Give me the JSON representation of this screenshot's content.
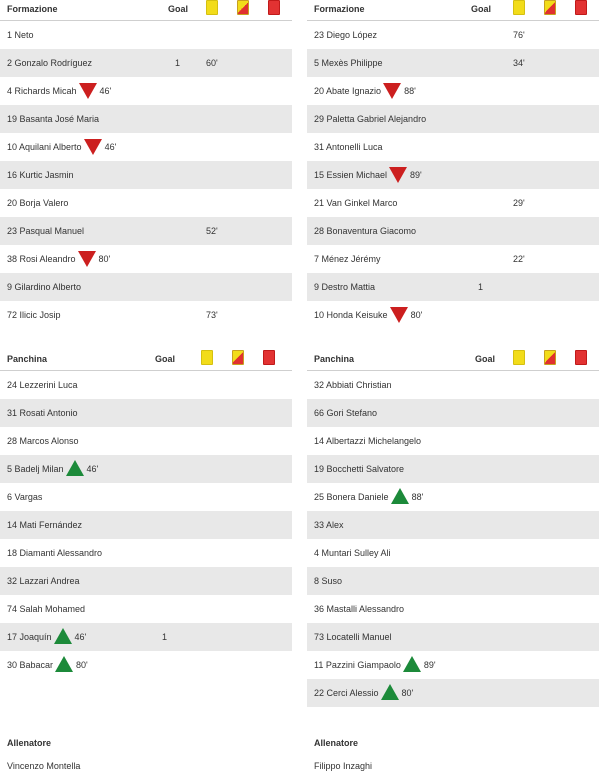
{
  "home": {
    "lineup": {
      "title": "Formazione",
      "goal_label": "Goal",
      "players": [
        {
          "label": "1 Neto",
          "sub": null,
          "time": "",
          "goal": "",
          "yellow": ""
        },
        {
          "label": "2 Gonzalo Rodríguez",
          "sub": null,
          "time": "",
          "goal": "1",
          "yellow": "60'"
        },
        {
          "label": "4 Richards Micah",
          "sub": "out",
          "time": "46'",
          "goal": "",
          "yellow": ""
        },
        {
          "label": "19 Basanta José Maria",
          "sub": null,
          "time": "",
          "goal": "",
          "yellow": ""
        },
        {
          "label": "10 Aquilani Alberto",
          "sub": "out",
          "time": "46'",
          "goal": "",
          "yellow": ""
        },
        {
          "label": "16 Kurtic Jasmin",
          "sub": null,
          "time": "",
          "goal": "",
          "yellow": ""
        },
        {
          "label": "20 Borja Valero",
          "sub": null,
          "time": "",
          "goal": "",
          "yellow": ""
        },
        {
          "label": "23 Pasqual Manuel",
          "sub": null,
          "time": "",
          "goal": "",
          "yellow": "52'"
        },
        {
          "label": "38 Rosi Aleandro",
          "sub": "out",
          "time": "80'",
          "goal": "",
          "yellow": ""
        },
        {
          "label": "9 Gilardino Alberto",
          "sub": null,
          "time": "",
          "goal": "",
          "yellow": ""
        },
        {
          "label": "72 Ilicic Josip",
          "sub": null,
          "time": "",
          "goal": "",
          "yellow": "73'"
        }
      ]
    },
    "bench": {
      "title": "Panchina",
      "goal_label": "Goal",
      "players": [
        {
          "label": "24 Lezzerini Luca",
          "sub": null,
          "time": "",
          "goal": "",
          "yellow": ""
        },
        {
          "label": "31 Rosati Antonio",
          "sub": null,
          "time": "",
          "goal": "",
          "yellow": ""
        },
        {
          "label": "28 Marcos Alonso",
          "sub": null,
          "time": "",
          "goal": "",
          "yellow": ""
        },
        {
          "label": "5 Badelj Milan",
          "sub": "in",
          "time": "46'",
          "goal": "",
          "yellow": ""
        },
        {
          "label": "6 Vargas",
          "sub": null,
          "time": "",
          "goal": "",
          "yellow": ""
        },
        {
          "label": "14 Mati Fernández",
          "sub": null,
          "time": "",
          "goal": "",
          "yellow": ""
        },
        {
          "label": "18 Diamanti Alessandro",
          "sub": null,
          "time": "",
          "goal": "",
          "yellow": ""
        },
        {
          "label": "32 Lazzari Andrea",
          "sub": null,
          "time": "",
          "goal": "",
          "yellow": ""
        },
        {
          "label": "74 Salah Mohamed",
          "sub": null,
          "time": "",
          "goal": "",
          "yellow": ""
        },
        {
          "label": "17 Joaquín",
          "sub": "in",
          "time": "46'",
          "goal": "1",
          "yellow": ""
        },
        {
          "label": "30 Babacar",
          "sub": "in",
          "time": "80'",
          "goal": "",
          "yellow": ""
        }
      ]
    },
    "coach": {
      "label": "Allenatore",
      "name": "Vincenzo Montella"
    }
  },
  "away": {
    "lineup": {
      "title": "Formazione",
      "goal_label": "Goal",
      "players": [
        {
          "label": "23 Diego López",
          "sub": null,
          "time": "",
          "goal": "",
          "yellow": "76'"
        },
        {
          "label": "5 Mexès Philippe",
          "sub": null,
          "time": "",
          "goal": "",
          "yellow": "34'"
        },
        {
          "label": "20 Abate Ignazio",
          "sub": "out",
          "time": "88'",
          "goal": "",
          "yellow": ""
        },
        {
          "label": "29 Paletta Gabriel Alejandro",
          "sub": null,
          "time": "",
          "goal": "",
          "yellow": ""
        },
        {
          "label": "31 Antonelli Luca",
          "sub": null,
          "time": "",
          "goal": "",
          "yellow": ""
        },
        {
          "label": "15 Essien Michael",
          "sub": "out",
          "time": "89'",
          "goal": "",
          "yellow": ""
        },
        {
          "label": "21 Van Ginkel Marco",
          "sub": null,
          "time": "",
          "goal": "",
          "yellow": "29'"
        },
        {
          "label": "28 Bonaventura Giacomo",
          "sub": null,
          "time": "",
          "goal": "",
          "yellow": ""
        },
        {
          "label": "7 Ménez Jérémy",
          "sub": null,
          "time": "",
          "goal": "",
          "yellow": "22'"
        },
        {
          "label": "9 Destro Mattia",
          "sub": null,
          "time": "",
          "goal": "1",
          "yellow": ""
        },
        {
          "label": "10 Honda Keisuke",
          "sub": "out",
          "time": "80'",
          "goal": "",
          "yellow": ""
        }
      ]
    },
    "bench": {
      "title": "Panchina",
      "goal_label": "Goal",
      "players": [
        {
          "label": "32 Abbiati Christian",
          "sub": null,
          "time": "",
          "goal": "",
          "yellow": ""
        },
        {
          "label": "66 Gori Stefano",
          "sub": null,
          "time": "",
          "goal": "",
          "yellow": ""
        },
        {
          "label": "14 Albertazzi Michelangelo",
          "sub": null,
          "time": "",
          "goal": "",
          "yellow": ""
        },
        {
          "label": "19 Bocchetti Salvatore",
          "sub": null,
          "time": "",
          "goal": "",
          "yellow": ""
        },
        {
          "label": "25 Bonera Daniele",
          "sub": "in",
          "time": "88'",
          "goal": "",
          "yellow": ""
        },
        {
          "label": "33 Alex",
          "sub": null,
          "time": "",
          "goal": "",
          "yellow": ""
        },
        {
          "label": "4 Muntari Sulley Ali",
          "sub": null,
          "time": "",
          "goal": "",
          "yellow": ""
        },
        {
          "label": "8 Suso",
          "sub": null,
          "time": "",
          "goal": "",
          "yellow": ""
        },
        {
          "label": "36 Mastalli Alessandro",
          "sub": null,
          "time": "",
          "goal": "",
          "yellow": ""
        },
        {
          "label": "73 Locatelli Manuel",
          "sub": null,
          "time": "",
          "goal": "",
          "yellow": ""
        },
        {
          "label": "11 Pazzini Giampaolo",
          "sub": "in",
          "time": "89'",
          "goal": "",
          "yellow": ""
        },
        {
          "label": "22 Cerci Alessio",
          "sub": "in",
          "time": "80'",
          "goal": "",
          "yellow": ""
        }
      ]
    },
    "coach": {
      "label": "Allenatore",
      "name": "Filippo Inzaghi"
    }
  },
  "icons": {
    "yellow_card": "yellow-card-icon",
    "second_yellow": "second-yellow-card-icon",
    "red_card": "red-card-icon",
    "sub_out": "substitution-out-icon",
    "sub_in": "substitution-in-icon"
  },
  "colors": {
    "row_alt": "#e8e8e8",
    "sub_out": "#cc1f1f",
    "sub_in": "#1c8a3a",
    "yellow": "#f2dc1a",
    "red": "#e23232"
  }
}
